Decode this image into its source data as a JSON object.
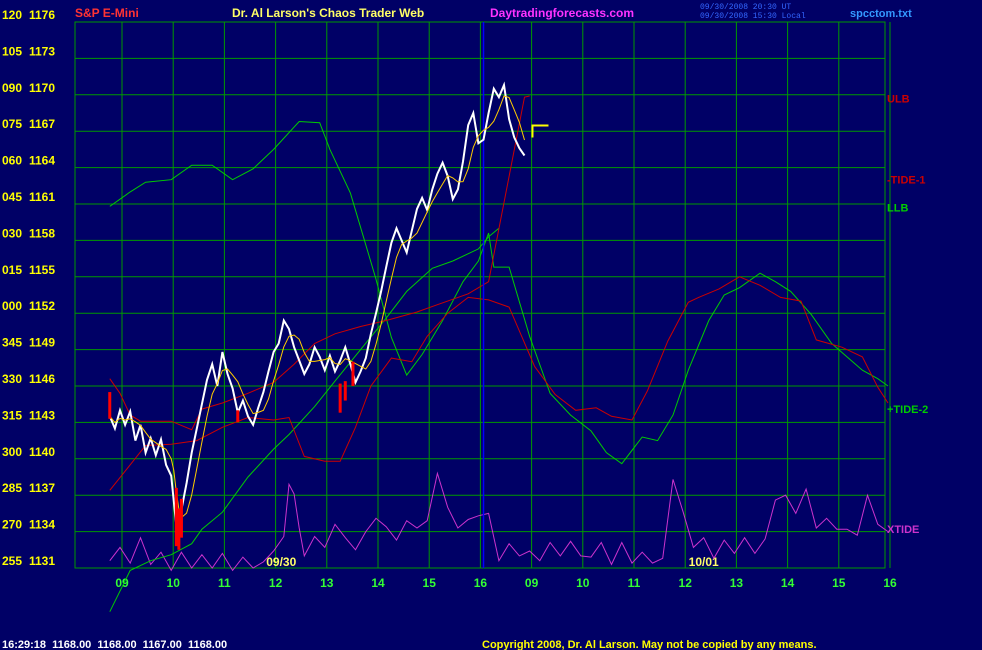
{
  "header": {
    "symbol": "S&P E-Mini",
    "title": "Dr. Al Larson's Chaos Trader Web",
    "site": "Daytradingforecasts.com",
    "stamp_1": "09/30/2008 20:30 UT",
    "stamp_2": "09/30/2008 15:30 Local",
    "file": "spcctom.txt"
  },
  "footer": {
    "quote": "16:29:18  1168.00  1168.00  1167.00  1168.00",
    "copyright": "Copyright 2008, Dr. Al Larson. May not be copied by any means."
  },
  "colors": {
    "background": "#000066",
    "grid": "#009900",
    "price": "#ffffff",
    "ulb": "#cc0000",
    "llb": "#00cc00",
    "xtide": "#cc33cc",
    "cursor": "#0000ff",
    "forecast_marker": "#ffff00"
  },
  "chart_data": {
    "type": "line",
    "xlabels": [
      "09",
      "10",
      "11",
      "12",
      "13",
      "14",
      "15",
      "16",
      "09",
      "10",
      "11",
      "12",
      "13",
      "14",
      "15",
      "16"
    ],
    "date_labels": [
      {
        "text": "09/30",
        "hour_index": 3.15
      },
      {
        "text": "10/01",
        "hour_index": 11.4
      }
    ],
    "ylabels_left": [
      "120",
      "105",
      "090",
      "075",
      "060",
      "045",
      "030",
      "015",
      "000",
      "345",
      "330",
      "315",
      "300",
      "285",
      "270",
      "255"
    ],
    "ylabels_right": [
      "1176",
      "1173",
      "1170",
      "1167",
      "1164",
      "1161",
      "1158",
      "1155",
      "1152",
      "1149",
      "1146",
      "1143",
      "1140",
      "1137",
      "1134",
      "1131"
    ],
    "ylim": [
      1131,
      1176
    ],
    "xlim": [
      -0.2,
      15.0
    ],
    "current_time_index": 7.1,
    "series_labels": [
      {
        "text": "ULB",
        "color": "#cc0000",
        "y": 1169.7
      },
      {
        "text": "-TIDE-1",
        "color": "#cc0000",
        "y": 1163.0
      },
      {
        "text": "LLB",
        "color": "#00cc00",
        "y": 1160.7
      },
      {
        "text": "+TIDE-2",
        "color": "#00cc00",
        "y": 1144.1
      },
      {
        "text": "XTIDE",
        "color": "#cc33cc",
        "y": 1134.2
      }
    ],
    "price": [
      [
        -0.2,
        1143.5
      ],
      [
        -0.1,
        1142.5
      ],
      [
        0.0,
        1144.0
      ],
      [
        0.1,
        1142.8
      ],
      [
        0.2,
        1143.9
      ],
      [
        0.3,
        1141.5
      ],
      [
        0.4,
        1142.8
      ],
      [
        0.5,
        1140.5
      ],
      [
        0.6,
        1141.7
      ],
      [
        0.7,
        1140.3
      ],
      [
        0.8,
        1141.6
      ],
      [
        0.9,
        1139.5
      ],
      [
        1.0,
        1138.6
      ],
      [
        1.05,
        1136.5
      ],
      [
        1.1,
        1134.5
      ],
      [
        1.15,
        1133.8
      ],
      [
        1.2,
        1135.8
      ],
      [
        1.3,
        1138.0
      ],
      [
        1.4,
        1140.5
      ],
      [
        1.5,
        1142.5
      ],
      [
        1.6,
        1144.5
      ],
      [
        1.7,
        1146.5
      ],
      [
        1.8,
        1147.8
      ],
      [
        1.9,
        1146.0
      ],
      [
        2.0,
        1148.8
      ],
      [
        2.1,
        1147.0
      ],
      [
        2.2,
        1145.8
      ],
      [
        2.3,
        1143.8
      ],
      [
        2.4,
        1144.8
      ],
      [
        2.5,
        1143.5
      ],
      [
        2.6,
        1142.8
      ],
      [
        2.7,
        1144.2
      ],
      [
        2.8,
        1145.5
      ],
      [
        2.9,
        1147.2
      ],
      [
        3.0,
        1148.8
      ],
      [
        3.1,
        1149.5
      ],
      [
        3.2,
        1151.4
      ],
      [
        3.3,
        1150.7
      ],
      [
        3.4,
        1149.2
      ],
      [
        3.5,
        1148.1
      ],
      [
        3.6,
        1147.0
      ],
      [
        3.7,
        1147.8
      ],
      [
        3.8,
        1149.2
      ],
      [
        3.9,
        1148.4
      ],
      [
        4.0,
        1147.3
      ],
      [
        4.1,
        1148.5
      ],
      [
        4.2,
        1147.2
      ],
      [
        4.3,
        1148.1
      ],
      [
        4.4,
        1149.2
      ],
      [
        4.5,
        1147.8
      ],
      [
        4.6,
        1146.3
      ],
      [
        4.7,
        1147.2
      ],
      [
        4.8,
        1148.3
      ],
      [
        4.9,
        1150.3
      ],
      [
        5.0,
        1152.0
      ],
      [
        5.1,
        1153.8
      ],
      [
        5.2,
        1155.8
      ],
      [
        5.3,
        1157.8
      ],
      [
        5.4,
        1159.0
      ],
      [
        5.5,
        1158.0
      ],
      [
        5.6,
        1157.0
      ],
      [
        5.7,
        1158.8
      ],
      [
        5.8,
        1160.6
      ],
      [
        5.9,
        1161.5
      ],
      [
        6.0,
        1160.5
      ],
      [
        6.1,
        1162.2
      ],
      [
        6.2,
        1163.5
      ],
      [
        6.3,
        1164.4
      ],
      [
        6.4,
        1163.3
      ],
      [
        6.5,
        1161.4
      ],
      [
        6.6,
        1162.2
      ],
      [
        6.7,
        1164.5
      ],
      [
        6.8,
        1167.5
      ],
      [
        6.9,
        1168.5
      ],
      [
        7.0,
        1166.0
      ],
      [
        7.1,
        1166.3
      ],
      [
        7.2,
        1168.5
      ],
      [
        7.3,
        1170.5
      ],
      [
        7.4,
        1169.8
      ],
      [
        7.5,
        1170.8
      ],
      [
        7.6,
        1168.0
      ],
      [
        7.7,
        1166.5
      ],
      [
        7.8,
        1165.6
      ],
      [
        7.9,
        1165.0
      ]
    ],
    "ulb": [
      [
        -0.2,
        1146.6
      ],
      [
        0.0,
        1145.4
      ],
      [
        0.2,
        1143.6
      ],
      [
        0.4,
        1143.1
      ],
      [
        1.0,
        1143.1
      ],
      [
        1.4,
        1142.4
      ],
      [
        1.6,
        1144.1
      ],
      [
        2.0,
        1144.6
      ],
      [
        2.5,
        1145.4
      ],
      [
        3.0,
        1146.3
      ],
      [
        3.4,
        1147.8
      ],
      [
        3.8,
        1149.5
      ],
      [
        4.2,
        1150.3
      ],
      [
        4.7,
        1150.9
      ],
      [
        5.2,
        1151.4
      ],
      [
        5.8,
        1152.1
      ],
      [
        6.2,
        1152.7
      ],
      [
        6.8,
        1153.6
      ],
      [
        7.2,
        1154.6
      ],
      [
        7.9,
        1169.8
      ],
      [
        8.0,
        1169.9
      ]
    ],
    "neg_tide": [
      [
        -0.2,
        1137.4
      ],
      [
        0.5,
        1141.1
      ],
      [
        1.0,
        1141.2
      ],
      [
        1.5,
        1141.5
      ],
      [
        2.0,
        1142.6
      ],
      [
        2.5,
        1143.4
      ],
      [
        3.0,
        1143.2
      ],
      [
        3.3,
        1143.4
      ],
      [
        3.6,
        1140.2
      ],
      [
        4.0,
        1139.8
      ],
      [
        4.3,
        1139.8
      ],
      [
        4.6,
        1142.6
      ],
      [
        4.9,
        1146.0
      ],
      [
        5.3,
        1148.3
      ],
      [
        5.7,
        1148.0
      ],
      [
        6.0,
        1150.1
      ],
      [
        6.4,
        1152.0
      ],
      [
        6.8,
        1153.3
      ],
      [
        7.2,
        1153.1
      ],
      [
        7.6,
        1152.5
      ],
      [
        8.1,
        1147.6
      ],
      [
        8.5,
        1145.3
      ],
      [
        8.9,
        1144.0
      ],
      [
        9.3,
        1144.2
      ],
      [
        9.6,
        1143.5
      ],
      [
        10.0,
        1143.2
      ],
      [
        10.3,
        1145.6
      ],
      [
        10.7,
        1149.7
      ],
      [
        11.1,
        1152.9
      ],
      [
        11.3,
        1153.3
      ],
      [
        11.7,
        1154.0
      ],
      [
        12.1,
        1155.0
      ],
      [
        12.5,
        1154.3
      ],
      [
        12.9,
        1153.3
      ],
      [
        13.3,
        1153.0
      ],
      [
        13.6,
        1149.8
      ],
      [
        14.1,
        1149.2
      ],
      [
        14.5,
        1148.4
      ],
      [
        14.8,
        1145.9
      ],
      [
        15.0,
        1144.6
      ]
    ],
    "llb": [
      [
        -0.2,
        1127.4
      ],
      [
        0.2,
        1130.8
      ],
      [
        0.6,
        1131.6
      ],
      [
        1.0,
        1132.1
      ],
      [
        1.4,
        1133.0
      ],
      [
        1.6,
        1134.2
      ],
      [
        2.0,
        1135.6
      ],
      [
        2.5,
        1138.5
      ],
      [
        3.0,
        1140.8
      ],
      [
        3.3,
        1142.0
      ],
      [
        3.8,
        1144.3
      ],
      [
        4.2,
        1146.4
      ],
      [
        4.7,
        1149.0
      ],
      [
        5.2,
        1151.6
      ],
      [
        5.6,
        1153.8
      ],
      [
        6.1,
        1155.7
      ],
      [
        6.5,
        1156.3
      ],
      [
        7.0,
        1157.3
      ],
      [
        7.2,
        1158.3
      ],
      [
        7.4,
        1159.0
      ]
    ],
    "pos_tide": [
      [
        -0.2,
        1160.8
      ],
      [
        0.2,
        1162.0
      ],
      [
        0.5,
        1162.8
      ],
      [
        1.0,
        1163.0
      ],
      [
        1.4,
        1164.2
      ],
      [
        1.8,
        1164.2
      ],
      [
        2.2,
        1163.0
      ],
      [
        2.6,
        1163.9
      ],
      [
        3.0,
        1165.5
      ],
      [
        3.5,
        1167.8
      ],
      [
        3.9,
        1167.7
      ],
      [
        4.1,
        1165.5
      ],
      [
        4.5,
        1161.9
      ],
      [
        5.0,
        1154.8
      ],
      [
        5.3,
        1150.0
      ],
      [
        5.6,
        1146.9
      ],
      [
        5.9,
        1148.6
      ],
      [
        6.3,
        1151.4
      ],
      [
        6.7,
        1154.6
      ],
      [
        7.0,
        1156.3
      ],
      [
        7.2,
        1158.6
      ],
      [
        7.3,
        1155.8
      ],
      [
        7.6,
        1155.8
      ],
      [
        8.0,
        1150.1
      ],
      [
        8.4,
        1145.4
      ],
      [
        8.8,
        1143.6
      ],
      [
        9.2,
        1142.3
      ],
      [
        9.5,
        1140.5
      ],
      [
        9.8,
        1139.6
      ],
      [
        10.2,
        1141.8
      ],
      [
        10.5,
        1141.5
      ],
      [
        10.8,
        1143.6
      ],
      [
        11.1,
        1147.3
      ],
      [
        11.5,
        1151.4
      ],
      [
        11.8,
        1153.5
      ],
      [
        12.1,
        1154.1
      ],
      [
        12.5,
        1155.3
      ],
      [
        12.8,
        1154.6
      ],
      [
        13.1,
        1153.8
      ],
      [
        13.5,
        1151.9
      ],
      [
        13.9,
        1149.5
      ],
      [
        14.2,
        1148.4
      ],
      [
        14.5,
        1147.3
      ],
      [
        14.8,
        1146.6
      ],
      [
        15.0,
        1146.0
      ]
    ],
    "xtide": [
      [
        -0.2,
        1131.6
      ],
      [
        0.0,
        1132.7
      ],
      [
        0.2,
        1131.4
      ],
      [
        0.4,
        1133.5
      ],
      [
        0.6,
        1131.3
      ],
      [
        0.8,
        1132.3
      ],
      [
        1.0,
        1130.8
      ],
      [
        1.2,
        1132.3
      ],
      [
        1.4,
        1131.0
      ],
      [
        1.6,
        1132.1
      ],
      [
        1.8,
        1131.0
      ],
      [
        2.0,
        1132.2
      ],
      [
        2.2,
        1130.8
      ],
      [
        2.4,
        1131.9
      ],
      [
        2.6,
        1131.0
      ],
      [
        2.8,
        1131.5
      ],
      [
        3.0,
        1132.4
      ],
      [
        3.2,
        1133.6
      ],
      [
        3.3,
        1137.9
      ],
      [
        3.4,
        1137.1
      ],
      [
        3.5,
        1134.3
      ],
      [
        3.6,
        1132.0
      ],
      [
        3.8,
        1133.6
      ],
      [
        4.0,
        1132.7
      ],
      [
        4.2,
        1134.6
      ],
      [
        4.4,
        1133.5
      ],
      [
        4.6,
        1132.5
      ],
      [
        4.8,
        1134.0
      ],
      [
        5.0,
        1135.1
      ],
      [
        5.2,
        1134.4
      ],
      [
        5.4,
        1133.3
      ],
      [
        5.6,
        1134.9
      ],
      [
        5.8,
        1134.3
      ],
      [
        6.0,
        1134.9
      ],
      [
        6.2,
        1138.8
      ],
      [
        6.4,
        1136.0
      ],
      [
        6.6,
        1134.3
      ],
      [
        6.8,
        1135.0
      ],
      [
        7.0,
        1135.3
      ],
      [
        7.2,
        1135.5
      ],
      [
        7.4,
        1131.6
      ],
      [
        7.6,
        1133.0
      ],
      [
        7.8,
        1132.0
      ],
      [
        8.0,
        1132.4
      ],
      [
        8.2,
        1131.6
      ],
      [
        8.4,
        1133.1
      ],
      [
        8.6,
        1132.0
      ],
      [
        8.8,
        1133.2
      ],
      [
        9.0,
        1132.0
      ],
      [
        9.2,
        1131.9
      ],
      [
        9.4,
        1133.1
      ],
      [
        9.6,
        1131.3
      ],
      [
        9.8,
        1133.1
      ],
      [
        10.0,
        1131.4
      ],
      [
        10.2,
        1132.3
      ],
      [
        10.4,
        1131.4
      ],
      [
        10.6,
        1131.8
      ],
      [
        10.8,
        1138.3
      ],
      [
        11.0,
        1135.6
      ],
      [
        11.2,
        1132.7
      ],
      [
        11.4,
        1133.5
      ],
      [
        11.6,
        1131.8
      ],
      [
        11.8,
        1133.3
      ],
      [
        12.0,
        1132.2
      ],
      [
        12.2,
        1133.5
      ],
      [
        12.4,
        1132.2
      ],
      [
        12.6,
        1133.4
      ],
      [
        12.8,
        1136.6
      ],
      [
        13.0,
        1137.0
      ],
      [
        13.2,
        1135.5
      ],
      [
        13.4,
        1137.5
      ],
      [
        13.6,
        1134.3
      ],
      [
        13.8,
        1135.1
      ],
      [
        14.0,
        1134.2
      ],
      [
        14.2,
        1134.2
      ],
      [
        14.4,
        1133.7
      ],
      [
        14.6,
        1137.0
      ],
      [
        14.8,
        1134.6
      ],
      [
        15.0,
        1134.0
      ]
    ],
    "red_bars": [
      [
        -0.2,
        1143.3,
        1145.5
      ],
      [
        1.1,
        1132.8,
        1137.6
      ],
      [
        1.15,
        1132.5,
        1135.9
      ],
      [
        1.2,
        1133.5,
        1136.7
      ],
      [
        2.3,
        1143.0,
        1144.0
      ],
      [
        4.3,
        1143.8,
        1146.2
      ],
      [
        4.4,
        1144.8,
        1146.4
      ],
      [
        4.55,
        1146.0,
        1148.0
      ]
    ]
  }
}
